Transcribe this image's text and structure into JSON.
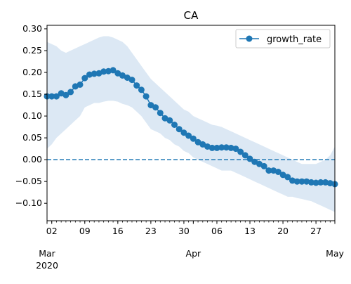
{
  "chart_data": {
    "type": "line",
    "title": "CA",
    "xlabel": "",
    "ylabel": "",
    "x_start": "2020-03-01",
    "x_end": "2020-05-01",
    "ylim": [
      -0.14,
      0.308
    ],
    "yticks": [
      -0.1,
      -0.05,
      0.0,
      0.05,
      0.1,
      0.15,
      0.2,
      0.25,
      0.3
    ],
    "ytick_labels": [
      "−0.10",
      "−0.05",
      "0.00",
      "0.05",
      "0.10",
      "0.15",
      "0.20",
      "0.25",
      "0.30"
    ],
    "xticks_major": [
      {
        "date": "2020-03-02",
        "label": "02"
      },
      {
        "date": "2020-03-09",
        "label": "09"
      },
      {
        "date": "2020-03-16",
        "label": "16"
      },
      {
        "date": "2020-03-23",
        "label": "23"
      },
      {
        "date": "2020-03-30",
        "label": "30"
      },
      {
        "date": "2020-04-06",
        "label": "06"
      },
      {
        "date": "2020-04-13",
        "label": "13"
      },
      {
        "date": "2020-04-20",
        "label": "20"
      },
      {
        "date": "2020-04-27",
        "label": "27"
      }
    ],
    "xticks_month": [
      {
        "date": "2020-03-01",
        "label": "Mar",
        "sublabel": "2020"
      },
      {
        "date": "2020-04-01",
        "label": "Apr",
        "sublabel": ""
      },
      {
        "date": "2020-05-01",
        "label": "May",
        "sublabel": ""
      }
    ],
    "reference_line": {
      "y": 0.0,
      "style": "dashed"
    },
    "legend": {
      "position": "top-right"
    },
    "grid": false,
    "colors": {
      "series": "#1f77b4",
      "band": "#dce8f4"
    },
    "series": [
      {
        "name": "growth_rate",
        "x": [
          "2020-03-01",
          "2020-03-02",
          "2020-03-03",
          "2020-03-04",
          "2020-03-05",
          "2020-03-06",
          "2020-03-07",
          "2020-03-08",
          "2020-03-09",
          "2020-03-10",
          "2020-03-11",
          "2020-03-12",
          "2020-03-13",
          "2020-03-14",
          "2020-03-15",
          "2020-03-16",
          "2020-03-17",
          "2020-03-18",
          "2020-03-19",
          "2020-03-20",
          "2020-03-21",
          "2020-03-22",
          "2020-03-23",
          "2020-03-24",
          "2020-03-25",
          "2020-03-26",
          "2020-03-27",
          "2020-03-28",
          "2020-03-29",
          "2020-03-30",
          "2020-03-31",
          "2020-04-01",
          "2020-04-02",
          "2020-04-03",
          "2020-04-04",
          "2020-04-05",
          "2020-04-06",
          "2020-04-07",
          "2020-04-08",
          "2020-04-09",
          "2020-04-10",
          "2020-04-11",
          "2020-04-12",
          "2020-04-13",
          "2020-04-14",
          "2020-04-15",
          "2020-04-16",
          "2020-04-17",
          "2020-04-18",
          "2020-04-19",
          "2020-04-20",
          "2020-04-21",
          "2020-04-22",
          "2020-04-23",
          "2020-04-24",
          "2020-04-25",
          "2020-04-26",
          "2020-04-27",
          "2020-04-28",
          "2020-04-29",
          "2020-04-30",
          "2020-05-01"
        ],
        "y": [
          0.145,
          0.145,
          0.145,
          0.152,
          0.148,
          0.155,
          0.168,
          0.172,
          0.187,
          0.195,
          0.197,
          0.198,
          0.202,
          0.203,
          0.205,
          0.198,
          0.193,
          0.188,
          0.183,
          0.17,
          0.16,
          0.145,
          0.125,
          0.12,
          0.107,
          0.095,
          0.09,
          0.08,
          0.07,
          0.062,
          0.055,
          0.048,
          0.04,
          0.035,
          0.03,
          0.027,
          0.027,
          0.028,
          0.028,
          0.027,
          0.025,
          0.018,
          0.01,
          0.002,
          -0.005,
          -0.01,
          -0.015,
          -0.025,
          -0.025,
          -0.028,
          -0.035,
          -0.04,
          -0.048,
          -0.05,
          -0.05,
          -0.05,
          -0.052,
          -0.053,
          -0.052,
          -0.052,
          -0.054,
          -0.056
        ],
        "ci_lower": [
          0.025,
          0.035,
          0.05,
          0.06,
          0.07,
          0.08,
          0.09,
          0.1,
          0.12,
          0.125,
          0.13,
          0.13,
          0.133,
          0.135,
          0.135,
          0.133,
          0.128,
          0.125,
          0.12,
          0.11,
          0.1,
          0.085,
          0.07,
          0.065,
          0.06,
          0.05,
          0.045,
          0.035,
          0.03,
          0.02,
          0.015,
          0.005,
          0.0,
          -0.005,
          -0.01,
          -0.015,
          -0.02,
          -0.025,
          -0.025,
          -0.025,
          -0.03,
          -0.035,
          -0.04,
          -0.045,
          -0.05,
          -0.055,
          -0.06,
          -0.065,
          -0.07,
          -0.075,
          -0.08,
          -0.085,
          -0.085,
          -0.088,
          -0.09,
          -0.093,
          -0.095,
          -0.1,
          -0.105,
          -0.11,
          -0.115,
          -0.12
        ],
        "ci_upper": [
          0.27,
          0.265,
          0.26,
          0.25,
          0.245,
          0.25,
          0.255,
          0.26,
          0.265,
          0.27,
          0.275,
          0.28,
          0.283,
          0.283,
          0.28,
          0.275,
          0.27,
          0.26,
          0.245,
          0.23,
          0.215,
          0.2,
          0.185,
          0.175,
          0.165,
          0.155,
          0.145,
          0.135,
          0.125,
          0.115,
          0.11,
          0.1,
          0.095,
          0.09,
          0.085,
          0.08,
          0.078,
          0.075,
          0.07,
          0.065,
          0.06,
          0.055,
          0.05,
          0.045,
          0.04,
          0.035,
          0.03,
          0.025,
          0.02,
          0.015,
          0.01,
          0.005,
          0.0,
          -0.005,
          -0.01,
          -0.01,
          -0.01,
          -0.01,
          -0.005,
          0.0,
          0.01,
          0.03
        ]
      }
    ]
  }
}
